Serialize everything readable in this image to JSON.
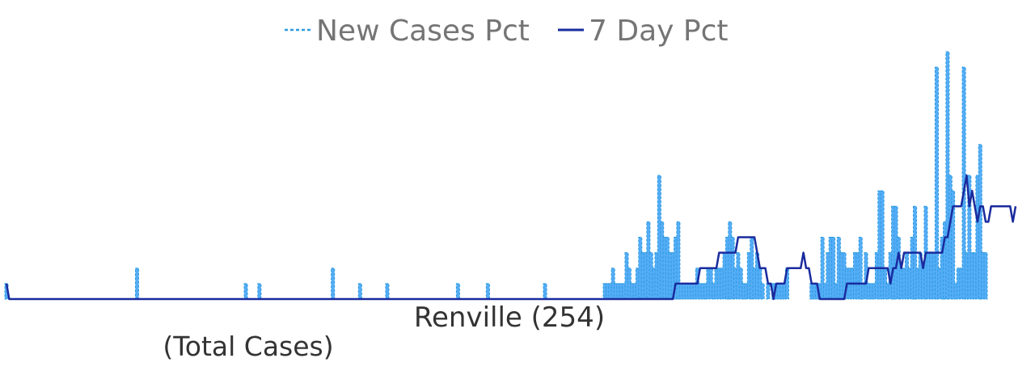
{
  "legend": {
    "new_cases_label": "New Cases Pct",
    "seven_day_label": "7 Day Pct"
  },
  "x_axis_label": "Renville (254)",
  "sub_label": "(Total Cases)",
  "colors": {
    "new_cases_fill": "#55adf6",
    "new_cases_stroke": "#2b9be0",
    "seven_day_line": "#1a2b9e"
  },
  "chart_data": {
    "type": "area",
    "x": "day index",
    "ylim": [
      0,
      16
    ],
    "grid": false,
    "legend_position": "top-center",
    "series": [
      {
        "name": "New Cases Pct",
        "style": "dashed area",
        "values": [
          1,
          0,
          0,
          0,
          0,
          0,
          0,
          0,
          0,
          0,
          0,
          0,
          0,
          0,
          0,
          0,
          0,
          0,
          0,
          0,
          0,
          0,
          0,
          0,
          0,
          0,
          0,
          0,
          0,
          0,
          0,
          0,
          0,
          0,
          0,
          0,
          0,
          0,
          0,
          0,
          0,
          0,
          0,
          0,
          0,
          0,
          0,
          0,
          2,
          0,
          0,
          0,
          0,
          0,
          0,
          0,
          0,
          0,
          0,
          0,
          0,
          0,
          0,
          0,
          0,
          0,
          0,
          0,
          0,
          0,
          0,
          0,
          0,
          0,
          0,
          0,
          0,
          0,
          0,
          0,
          0,
          0,
          0,
          0,
          0,
          0,
          0,
          0,
          1,
          0,
          0,
          0,
          0,
          1,
          0,
          0,
          0,
          0,
          0,
          0,
          0,
          0,
          0,
          0,
          0,
          0,
          0,
          0,
          0,
          0,
          0,
          0,
          0,
          0,
          0,
          0,
          0,
          0,
          0,
          0,
          2,
          0,
          0,
          0,
          0,
          0,
          0,
          0,
          0,
          0,
          1,
          0,
          0,
          0,
          0,
          0,
          0,
          0,
          0,
          0,
          1,
          0,
          0,
          0,
          0,
          0,
          0,
          0,
          0,
          0,
          0,
          0,
          0,
          0,
          0,
          0,
          0,
          0,
          0,
          0,
          0,
          0,
          0,
          0,
          0,
          0,
          1,
          0,
          0,
          0,
          0,
          0,
          0,
          0,
          0,
          0,
          0,
          1,
          0,
          0,
          0,
          0,
          0,
          0,
          0,
          0,
          0,
          0,
          0,
          0,
          0,
          0,
          0,
          0,
          0,
          0,
          0,
          0,
          1,
          0,
          0,
          0,
          0,
          0,
          0,
          0,
          0,
          0,
          0,
          0,
          0,
          0,
          0,
          0,
          0,
          0,
          0,
          0,
          0,
          0,
          1,
          1,
          1,
          2,
          1,
          1,
          1,
          1,
          3,
          2,
          1,
          1,
          2,
          4,
          3,
          3,
          5,
          3,
          2,
          3,
          8,
          5,
          4,
          4,
          3,
          3,
          4,
          5,
          1,
          1,
          1,
          1,
          1,
          1,
          2,
          1,
          1,
          1,
          2,
          2,
          1,
          2,
          2,
          2,
          3,
          4,
          5,
          4,
          2,
          3,
          2,
          1,
          1,
          3,
          4,
          2,
          3,
          2,
          1,
          0,
          1,
          0,
          1,
          1,
          1,
          1,
          1,
          2,
          0,
          0,
          0,
          0,
          0,
          0,
          0,
          0,
          1,
          1,
          1,
          1,
          4,
          1,
          3,
          4,
          4,
          1,
          4,
          3,
          3,
          2,
          2,
          2,
          3,
          3,
          4,
          1,
          3,
          1,
          1,
          1,
          3,
          7,
          7,
          2,
          1,
          3,
          6,
          6,
          4,
          2,
          2,
          3,
          2,
          4,
          6,
          2,
          3,
          2,
          6,
          3,
          3,
          3,
          15,
          2,
          4,
          5,
          16,
          8,
          7,
          1,
          2,
          2,
          15,
          3,
          8,
          3,
          3,
          8,
          10,
          3,
          3
        ],
        "bar_note": "daily values read from chart"
      },
      {
        "name": "7 Day Pct",
        "style": "solid line",
        "values": [
          1,
          0,
          0,
          0,
          0,
          0,
          0,
          0,
          0,
          0,
          0,
          0,
          0,
          0,
          0,
          0,
          0,
          0,
          0,
          0,
          0,
          0,
          0,
          0,
          0,
          0,
          0,
          0,
          0,
          0,
          0,
          0,
          0,
          0,
          0,
          0,
          0,
          0,
          0,
          0,
          0,
          0,
          0,
          0,
          0,
          0,
          0,
          0,
          0,
          0,
          0,
          0,
          0,
          0,
          0,
          0,
          0,
          0,
          0,
          0,
          0,
          0,
          0,
          0,
          0,
          0,
          0,
          0,
          0,
          0,
          0,
          0,
          0,
          0,
          0,
          0,
          0,
          0,
          0,
          0,
          0,
          0,
          0,
          0,
          0,
          0,
          0,
          0,
          0,
          0,
          0,
          0,
          0,
          0,
          0,
          0,
          0,
          0,
          0,
          0,
          0,
          0,
          0,
          0,
          0,
          0,
          0,
          0,
          0,
          0,
          0,
          0,
          0,
          0,
          0,
          0,
          0,
          0,
          0,
          0,
          0,
          0,
          0,
          0,
          0,
          0,
          0,
          0,
          0,
          0,
          0,
          0,
          0,
          0,
          0,
          0,
          0,
          0,
          0,
          0,
          0,
          0,
          0,
          0,
          0,
          0,
          0,
          0,
          0,
          0,
          0,
          0,
          0,
          0,
          0,
          0,
          0,
          0,
          0,
          0,
          0,
          0,
          0,
          0,
          0,
          0,
          0,
          0,
          0,
          0,
          0,
          0,
          0,
          0,
          0,
          0,
          0,
          0,
          0,
          0,
          0,
          0,
          0,
          0,
          0,
          0,
          0,
          0,
          0,
          0,
          0,
          0,
          0,
          0,
          0,
          0,
          0,
          0,
          0,
          0,
          0,
          0,
          0,
          0,
          0,
          0,
          0,
          0,
          0,
          0,
          0,
          0,
          0,
          0,
          0,
          0,
          0,
          0,
          0,
          0,
          0,
          0,
          0,
          0,
          0,
          0,
          0,
          0,
          0,
          0,
          0,
          0,
          0,
          0,
          0,
          0,
          0,
          0,
          0,
          0,
          0,
          0,
          0,
          0,
          0,
          0,
          1,
          1,
          1,
          1,
          1,
          1,
          1,
          1,
          1,
          2,
          2,
          2,
          2,
          2,
          2,
          2,
          3,
          3,
          3,
          3,
          3,
          3,
          3,
          4,
          4,
          4,
          4,
          4,
          4,
          4,
          3,
          2,
          2,
          2,
          1,
          1,
          0,
          1,
          1,
          1,
          1,
          2,
          2,
          2,
          2,
          2,
          2,
          3,
          2,
          2,
          1,
          1,
          1,
          0,
          0,
          0,
          0,
          0,
          0,
          0,
          0,
          0,
          0,
          1,
          1,
          1,
          1,
          1,
          1,
          1,
          1,
          2,
          2,
          2,
          2,
          2,
          2,
          2,
          2,
          1,
          2,
          2,
          3,
          2,
          3,
          3,
          3,
          3,
          3,
          3,
          3,
          2,
          3,
          3,
          3,
          3,
          3,
          3,
          3,
          4,
          4,
          5,
          6,
          6,
          6,
          6,
          7,
          8,
          6,
          7,
          6,
          5,
          6,
          6,
          5,
          5,
          6,
          6,
          6,
          6,
          6,
          6,
          6,
          6,
          5,
          6
        ]
      }
    ]
  }
}
